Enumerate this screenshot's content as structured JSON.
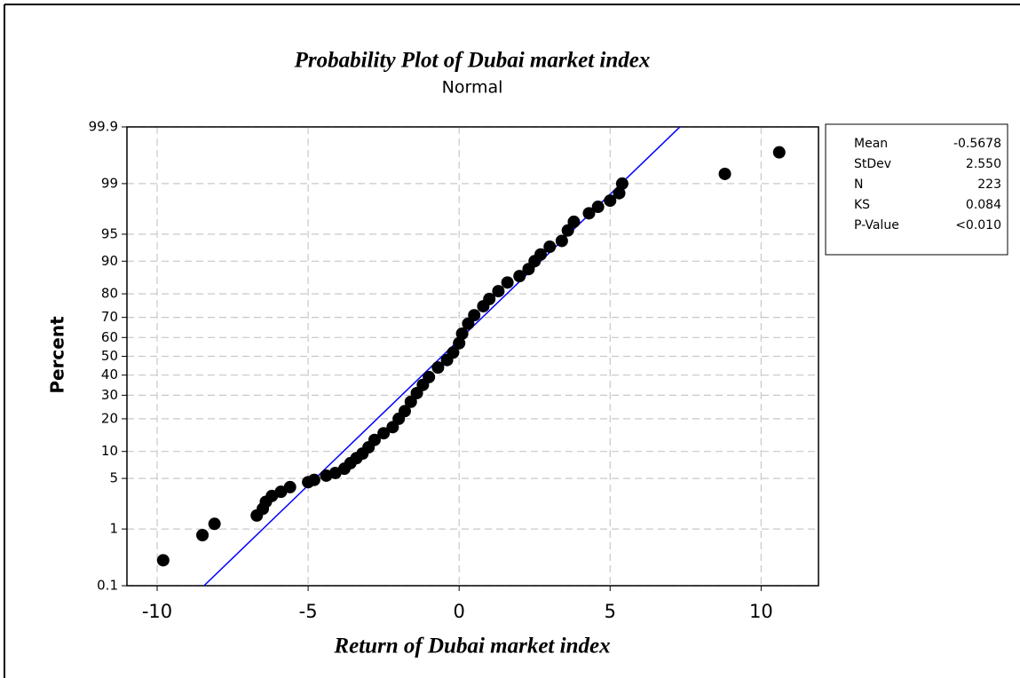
{
  "chart_data": {
    "type": "probability",
    "title": "Probability Plot of Dubai market index",
    "subtitle": "Normal",
    "x_label": "Return of Dubai market index",
    "y_label": "Percent",
    "xlim": [
      -11,
      11.9
    ],
    "xticks": [
      -10,
      -5,
      0,
      5,
      10
    ],
    "ylim": [
      0.1,
      99.9
    ],
    "yticks": [
      0.1,
      1,
      5,
      10,
      20,
      30,
      40,
      50,
      60,
      70,
      80,
      90,
      95,
      99,
      99.9
    ],
    "y_scale": "normal",
    "grid": true,
    "color": "#000000",
    "line_color": "#0000ff",
    "x": [
      -9.8,
      -8.5,
      -8.1,
      -6.7,
      -6.5,
      -6.4,
      -6.2,
      -5.9,
      -5.6,
      -5.0,
      -4.8,
      -4.4,
      -4.1,
      -3.8,
      -3.6,
      -3.4,
      -3.2,
      -3.0,
      -2.8,
      -2.5,
      -2.2,
      -2.0,
      -1.8,
      -1.6,
      -1.4,
      -1.2,
      -1.0,
      -0.7,
      -0.4,
      -0.2,
      0.0,
      0.1,
      0.3,
      0.5,
      0.8,
      1.0,
      1.3,
      1.6,
      2.0,
      2.3,
      2.5,
      2.7,
      3.0,
      3.4,
      3.6,
      3.8,
      4.3,
      4.6,
      5.0,
      5.3,
      5.4,
      8.8,
      10.6
    ],
    "values": [
      0.3,
      0.8,
      1.2,
      1.6,
      2.0,
      2.5,
      3.0,
      3.4,
      3.9,
      4.5,
      4.8,
      5.4,
      5.8,
      6.5,
      7.5,
      8.5,
      9.5,
      11,
      13,
      15,
      17,
      20,
      23,
      27,
      31,
      35,
      39,
      44,
      48,
      52,
      57,
      62,
      67,
      71,
      75,
      78,
      81,
      84,
      86,
      88,
      90,
      91.5,
      93,
      94,
      95.5,
      96.5,
      97.3,
      97.8,
      98.2,
      98.6,
      99.0,
      99.3,
      99.7
    ],
    "stats": [
      {
        "name": "Mean",
        "value": -0.5678
      },
      {
        "name": "StDev",
        "value": 2.55,
        "label": "2.550"
      },
      {
        "name": "N",
        "value": 223
      },
      {
        "name": "KS",
        "value": 0.084
      },
      {
        "name": "P-Value",
        "label": "<0.010"
      }
    ]
  }
}
